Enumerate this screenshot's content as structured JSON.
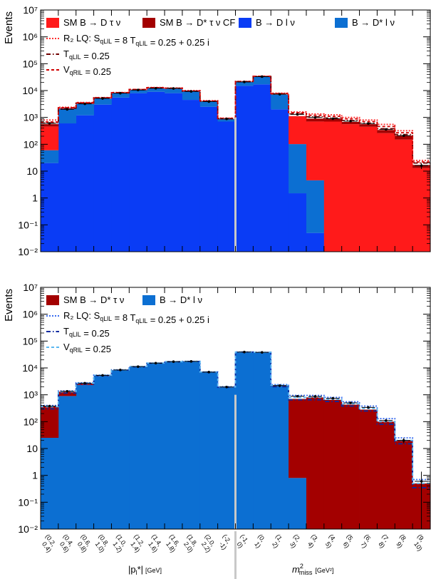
{
  "colors": {
    "dtaunu": "#ff1a1a",
    "dstartaunu": "#a30000",
    "dlnu": "#0a3cf5",
    "dstarlnu": "#0c6fd2",
    "black": "#000000",
    "separator": "#c8c8c8"
  },
  "chart_data": [
    {
      "type": "bar",
      "stacked": true,
      "yscale": "log",
      "ylim": [
        0.01,
        10000000
      ],
      "ylabel": "Events",
      "y_ticks": [
        "10⁻²",
        "10⁻¹",
        "1",
        "10",
        "10²",
        "10³",
        "10⁴",
        "10⁵",
        "10⁶",
        "10⁷"
      ],
      "legend": [
        {
          "label": "SM B → D τ ν",
          "kind": "fill",
          "color": "#ff1a1a"
        },
        {
          "label": "SM B → D* τ ν CF",
          "kind": "fill",
          "color": "#a30000"
        },
        {
          "label": "B → D l ν",
          "kind": "fill",
          "color": "#0a3cf5"
        },
        {
          "label": "B → D* l ν",
          "kind": "fill",
          "color": "#0c6fd2"
        },
        {
          "label": "R₂ LQ: S_qLlL = 8 T_qLlL = 0.25 + 0.25 i",
          "kind": "line",
          "color": "#ff3030",
          "dash": "2,2"
        },
        {
          "label": "T_qLlL = 0.25",
          "kind": "line",
          "color": "#700000",
          "dash": "6,3,1.5,3"
        },
        {
          "label": "V_qRlL = 0.25",
          "kind": "line",
          "color": "#d00000",
          "dash": "4,3"
        }
      ],
      "series": [
        {
          "name": "B → D l ν",
          "color": "#0a3cf5",
          "values": [
            20,
            600,
            1200,
            3000,
            5500,
            8000,
            9000,
            8000,
            4500,
            2500,
            700,
            15000,
            17000,
            2000,
            1.5,
            0.05,
            0,
            0,
            0,
            0,
            0,
            0
          ]
        },
        {
          "name": "B → D* l ν",
          "color": "#0c6fd2",
          "values": [
            40,
            1500,
            2000,
            2000,
            2500,
            2500,
            3000,
            3500,
            4800,
            1400,
            150,
            6000,
            16000,
            5000,
            100,
            4.5,
            0,
            0,
            0,
            0,
            0,
            0
          ]
        },
        {
          "name": "SM B → D τ ν",
          "color": "#ff1a1a",
          "values": [
            400,
            50,
            50,
            40,
            20,
            10,
            5,
            2,
            1,
            0,
            0,
            0,
            0,
            0,
            1000,
            700,
            700,
            560,
            450,
            260,
            150,
            13
          ]
        },
        {
          "name": "SM B → D* τ ν CF",
          "color": "#a30000",
          "values": [
            100,
            100,
            200,
            200,
            50,
            50,
            30,
            20,
            20,
            20,
            20,
            20,
            20,
            20,
            20,
            200,
            180,
            120,
            110,
            80,
            60,
            4
          ]
        }
      ],
      "overlays": [
        {
          "name": "R₂ LQ",
          "values": [
            800,
            2400,
            3600,
            5500,
            8500,
            11000,
            13000,
            12500,
            10000,
            4200,
            950,
            22000,
            34000,
            8000,
            1600,
            1350,
            1250,
            1000,
            800,
            550,
            320,
            25
          ]
        },
        {
          "name": "T_qLlL = 0.25",
          "values": [
            620,
            2200,
            3400,
            5300,
            8200,
            10800,
            12600,
            12100,
            9500,
            4000,
            900,
            21500,
            33500,
            7500,
            1350,
            1050,
            950,
            760,
            610,
            380,
            230,
            20
          ]
        },
        {
          "name": "V_qRlL = 0.25",
          "values": [
            680,
            2300,
            3500,
            5400,
            8400,
            11000,
            12800,
            12300,
            9700,
            4100,
            920,
            21800,
            33800,
            7700,
            1500,
            1200,
            1100,
            880,
            700,
            460,
            270,
            22
          ]
        }
      ],
      "data": [
        600,
        2000,
        3200,
        5100,
        8000,
        10500,
        12200,
        12000,
        9300,
        3900,
        880,
        21000,
        33000,
        7300,
        1300,
        1000,
        900,
        730,
        590,
        360,
        210,
        16
      ]
    },
    {
      "type": "bar",
      "stacked": true,
      "yscale": "log",
      "ylim": [
        0.01,
        10000000
      ],
      "ylabel": "Events",
      "y_ticks": [
        "10⁻²",
        "10⁻¹",
        "1",
        "10",
        "10²",
        "10³",
        "10⁴",
        "10⁵",
        "10⁶",
        "10⁷"
      ],
      "legend": [
        {
          "label": "SM B → D* τ ν",
          "kind": "fill",
          "color": "#a30000"
        },
        {
          "label": "B → D* l ν",
          "kind": "fill",
          "color": "#0c6fd2"
        },
        {
          "label": "R₂ LQ: S_qLlL = 8 T_qLlL = 0.25 + 0.25 i",
          "kind": "line",
          "color": "#3a6df0",
          "dash": "2,2"
        },
        {
          "label": "T_qLlL = 0.25",
          "kind": "line",
          "color": "#0a2aa0",
          "dash": "6,3,1.5,3"
        },
        {
          "label": "V_qRlL = 0.25",
          "kind": "line",
          "color": "#5ab8f0",
          "dash": "4,3"
        }
      ],
      "series": [
        {
          "name": "B → D* l ν",
          "color": "#0c6fd2",
          "values": [
            25,
            900,
            2300,
            5000,
            8200,
            11000,
            15000,
            17000,
            17500,
            7000,
            1900,
            39000,
            38000,
            2100,
            0.8,
            0,
            0,
            0,
            0,
            0,
            0,
            0
          ]
        },
        {
          "name": "SM B → D* τ ν",
          "color": "#a30000",
          "values": [
            350,
            400,
            300,
            200,
            100,
            50,
            40,
            30,
            20,
            10,
            10,
            10,
            10,
            150,
            700,
            800,
            650,
            430,
            280,
            100,
            20,
            0.5
          ]
        }
      ],
      "overlays": [
        {
          "name": "R₂ LQ",
          "values": [
            400,
            1400,
            2800,
            5400,
            8500,
            11300,
            15200,
            17200,
            17600,
            7100,
            2000,
            39100,
            38100,
            2400,
            950,
            950,
            800,
            550,
            380,
            130,
            25,
            0.7
          ]
        },
        {
          "name": "T_qLlL = 0.25",
          "values": [
            300,
            1150,
            2500,
            5100,
            8250,
            11000,
            15000,
            17000,
            17500,
            7000,
            1900,
            39000,
            38000,
            2000,
            650,
            650,
            560,
            380,
            250,
            80,
            15,
            0.35
          ]
        },
        {
          "name": "V_qRlL = 0.25",
          "values": [
            360,
            1300,
            2700,
            5300,
            8400,
            11200,
            15100,
            17100,
            17550,
            7050,
            1950,
            39050,
            38050,
            2250,
            800,
            800,
            680,
            460,
            310,
            100,
            20,
            0.5
          ]
        }
      ],
      "data": [
        380,
        1350,
        2700,
        5300,
        8400,
        11200,
        15100,
        17100,
        17500,
        7000,
        1950,
        39000,
        38000,
        2200,
        880,
        870,
        740,
        500,
        340,
        110,
        20,
        0.6
      ]
    }
  ],
  "x_axis": {
    "categories": [
      "(0.2, 0.4)",
      "(0.4, 0.6)",
      "(0.6, 0.8)",
      "(0.8, 1.0)",
      "(1.0, 1.2)",
      "(1.2, 1.4)",
      "(1.4, 1.6)",
      "(1.6, 1.8)",
      "(1.8, 2.0)",
      "(2.0, 2.2)",
      "(-2, -1)",
      "(-1, 0)",
      "(0, 1)",
      "(1, 2)",
      "(2, 3)",
      "(3, 4)",
      "(4, 5)",
      "(5, 6)",
      "(6, 7)",
      "(7, 8)",
      "(8, 9)",
      "(9, 10)"
    ],
    "label_left": "|p*_l| [GeV]",
    "label_right": "m²_miss [GeV²]"
  }
}
